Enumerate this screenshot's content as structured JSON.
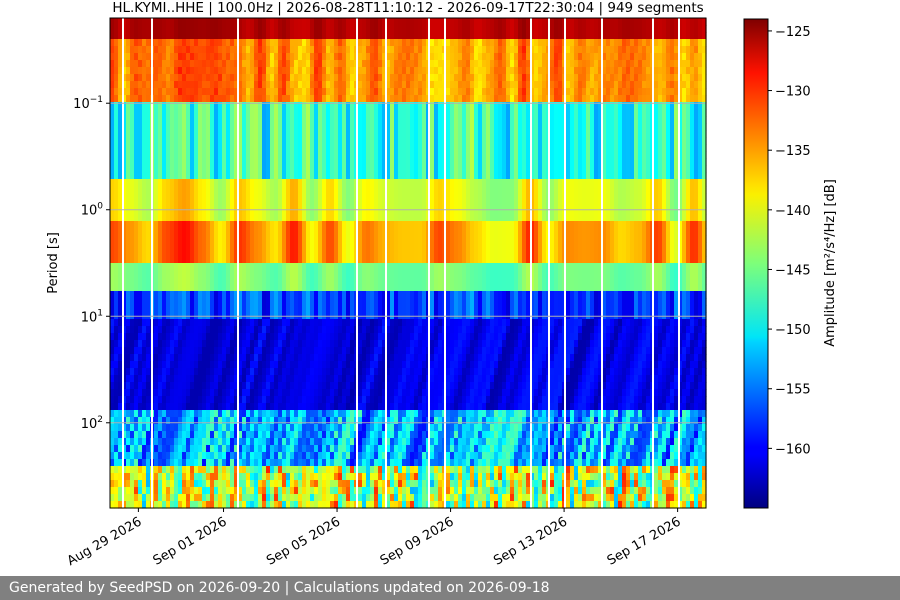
{
  "chart_data": {
    "type": "heatmap",
    "title": "HL.KYMI..HHE | 100.0Hz | 2026-08-28T11:10:12 - 2026-09-17T22:30:04 | 949 segments",
    "xlabel": "",
    "ylabel": "Period [s]",
    "colorbar_label": "Amplitude [m²/s⁴/Hz] [dB]",
    "x_range": [
      "2026-08-28",
      "2026-09-18"
    ],
    "y_range_log10": [
      -1.8,
      2.8
    ],
    "y_scale": "log",
    "y_inverted": true,
    "grid": true,
    "colormap": "jet",
    "color_range": [
      -165,
      -124
    ],
    "x_ticks": [
      {
        "date": "2026-08-29",
        "label": "Aug 29 2026"
      },
      {
        "date": "2026-09-01",
        "label": "Sep 01 2026"
      },
      {
        "date": "2026-09-05",
        "label": "Sep 05 2026"
      },
      {
        "date": "2026-09-09",
        "label": "Sep 09 2026"
      },
      {
        "date": "2026-09-13",
        "label": "Sep 13 2026"
      },
      {
        "date": "2026-09-17",
        "label": "Sep 17 2026"
      }
    ],
    "y_ticks": [
      {
        "value": 0.1,
        "base": "10",
        "exp": "−1"
      },
      {
        "value": 1,
        "base": "10",
        "exp": "0"
      },
      {
        "value": 10,
        "base": "10",
        "exp": "1"
      },
      {
        "value": 100,
        "base": "10",
        "exp": "2"
      }
    ],
    "colorbar_ticks": [
      -125,
      -130,
      -135,
      -140,
      -145,
      -150,
      -155,
      -160
    ]
  },
  "footer": {
    "text": "Generated by SeedPSD on 2026-09-20 | Calculations updated on 2026-09-18"
  }
}
